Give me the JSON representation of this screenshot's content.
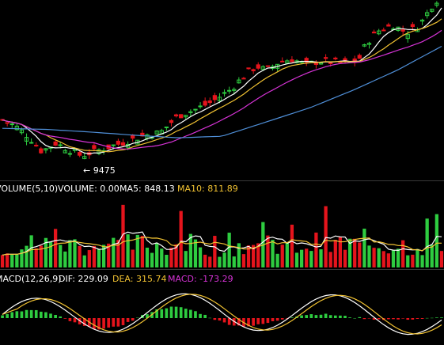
{
  "colors": {
    "background": "#000000",
    "up": "#2ecc40",
    "down": "#e5141c",
    "ma5": "#ffffff",
    "ma10": "#f1c232",
    "ma20": "#d633d6",
    "ma60": "#4f8fd8",
    "label_white": "#ffffff",
    "label_yellow": "#f1c232",
    "label_magenta": "#d633d6"
  },
  "price_panel": {
    "low_marker": "9475"
  },
  "volume_panel": {
    "name": "VOLUME(5,10)",
    "volume_label": "VOLUME: 0.00",
    "ma5_label": "MA5: 848.13",
    "ma10_label": "MA10: 811.89"
  },
  "macd_panel": {
    "name": "MACD(12,26,9)",
    "dif_label": "DIF: 229.09",
    "dea_label": "DEA: 315.74",
    "macd_label": "MACD: -173.29"
  },
  "chart_data": [
    {
      "type": "candlestick",
      "panel": "price",
      "price_range": [
        9300,
        11000
      ],
      "anchors": [
        [
          0,
          9860
        ],
        [
          0.03,
          9800
        ],
        [
          0.06,
          9700
        ],
        [
          0.09,
          9560
        ],
        [
          0.12,
          9640
        ],
        [
          0.15,
          9580
        ],
        [
          0.18,
          9520
        ],
        [
          0.21,
          9560
        ],
        [
          0.24,
          9600
        ],
        [
          0.27,
          9640
        ],
        [
          0.3,
          9680
        ],
        [
          0.33,
          9720
        ],
        [
          0.36,
          9740
        ],
        [
          0.4,
          9900
        ],
        [
          0.44,
          9960
        ],
        [
          0.48,
          10040
        ],
        [
          0.52,
          10150
        ],
        [
          0.56,
          10320
        ],
        [
          0.58,
          10370
        ],
        [
          0.6,
          10330
        ],
        [
          0.63,
          10410
        ],
        [
          0.66,
          10440
        ],
        [
          0.69,
          10380
        ],
        [
          0.72,
          10420
        ],
        [
          0.75,
          10410
        ],
        [
          0.78,
          10400
        ],
        [
          0.81,
          10420
        ],
        [
          0.83,
          10600
        ],
        [
          0.86,
          10720
        ],
        [
          0.89,
          10760
        ],
        [
          0.92,
          10690
        ],
        [
          0.95,
          10760
        ],
        [
          0.98,
          10960
        ],
        [
          1.0,
          11050
        ]
      ],
      "ma60_anchors": [
        [
          0,
          9780
        ],
        [
          0.1,
          9770
        ],
        [
          0.2,
          9745
        ],
        [
          0.3,
          9715
        ],
        [
          0.4,
          9690
        ],
        [
          0.5,
          9705
        ],
        [
          0.6,
          9840
        ],
        [
          0.7,
          9975
        ],
        [
          0.8,
          10145
        ],
        [
          0.9,
          10335
        ],
        [
          1.0,
          10560
        ]
      ],
      "low_marker_value": 9475
    },
    {
      "type": "bar",
      "panel": "volume",
      "series": [
        {
          "name": "VOLUME",
          "value": 0.0
        },
        {
          "name": "MA5",
          "value": 848.13
        },
        {
          "name": "MA10",
          "value": 811.89
        }
      ]
    },
    {
      "type": "histogram",
      "panel": "macd",
      "series": [
        {
          "name": "DIF",
          "value": 229.09
        },
        {
          "name": "DEA",
          "value": 315.74
        },
        {
          "name": "MACD",
          "value": -173.29
        }
      ]
    }
  ]
}
